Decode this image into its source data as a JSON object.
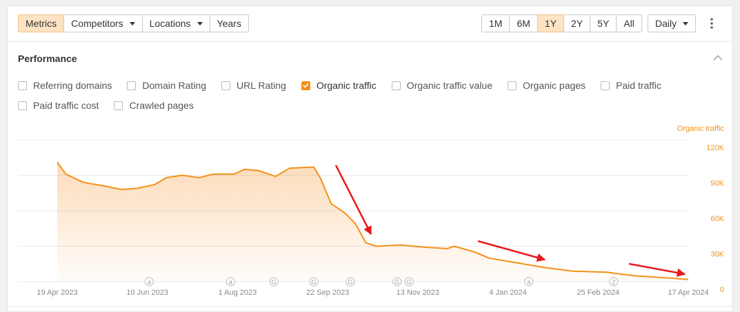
{
  "toolbar": {
    "tabs": [
      {
        "label": "Metrics",
        "active": true,
        "dropdown": false
      },
      {
        "label": "Competitors",
        "active": false,
        "dropdown": true
      },
      {
        "label": "Locations",
        "active": false,
        "dropdown": true
      },
      {
        "label": "Years",
        "active": false,
        "dropdown": false
      }
    ],
    "ranges": [
      {
        "label": "1M",
        "active": false
      },
      {
        "label": "6M",
        "active": false
      },
      {
        "label": "1Y",
        "active": true
      },
      {
        "label": "2Y",
        "active": false
      },
      {
        "label": "5Y",
        "active": false
      },
      {
        "label": "All",
        "active": false
      }
    ],
    "interval": "Daily"
  },
  "section_title": "Performance",
  "metrics": [
    {
      "label": "Referring domains",
      "checked": false
    },
    {
      "label": "Domain Rating",
      "checked": false
    },
    {
      "label": "URL Rating",
      "checked": false
    },
    {
      "label": "Organic traffic",
      "checked": true
    },
    {
      "label": "Organic traffic value",
      "checked": false
    },
    {
      "label": "Organic pages",
      "checked": false
    },
    {
      "label": "Paid traffic",
      "checked": false
    },
    {
      "label": "Paid traffic cost",
      "checked": false
    },
    {
      "label": "Crawled pages",
      "checked": false
    }
  ],
  "chart_data": {
    "type": "line",
    "y_label": "Organic traffic",
    "x": [
      "2023-04-19",
      "2023-04-24",
      "2023-05-04",
      "2023-05-16",
      "2023-05-26",
      "2023-06-04",
      "2023-06-14",
      "2023-06-21",
      "2023-06-30",
      "2023-07-10",
      "2023-07-18",
      "2023-07-30",
      "2023-08-05",
      "2023-08-13",
      "2023-08-23",
      "2023-08-31",
      "2023-09-14",
      "2023-09-18",
      "2023-09-24",
      "2023-10-02",
      "2023-10-08",
      "2023-10-14",
      "2023-10-20",
      "2023-11-03",
      "2023-11-19",
      "2023-11-30",
      "2023-12-04",
      "2023-12-16",
      "2023-12-24",
      "2024-01-09",
      "2024-01-25",
      "2024-02-10",
      "2024-03-01",
      "2024-03-17",
      "2024-04-02",
      "2024-04-17"
    ],
    "series": [
      {
        "name": "Organic traffic",
        "color": "#f39019",
        "values": [
          101000,
          91000,
          84000,
          81000,
          78000,
          79000,
          82000,
          88000,
          90000,
          88000,
          91000,
          91000,
          95000,
          94000,
          89000,
          96000,
          97000,
          87000,
          66000,
          58000,
          49000,
          33000,
          30000,
          31000,
          29000,
          28000,
          30000,
          25000,
          20000,
          16000,
          12000,
          9000,
          8000,
          5000,
          3500,
          2000
        ]
      }
    ],
    "xlim": [
      "2023-04-19",
      "2024-04-17"
    ],
    "xticks": [
      {
        "value": "2023-04-19",
        "label": "19 Apr 2023"
      },
      {
        "value": "2023-06-10",
        "label": "10 Jun 2023"
      },
      {
        "value": "2023-08-01",
        "label": "1 Aug 2023"
      },
      {
        "value": "2023-09-22",
        "label": "22 Sep 2023"
      },
      {
        "value": "2023-11-13",
        "label": "13 Nov 2023"
      },
      {
        "value": "2024-01-04",
        "label": "4 Jan 2024"
      },
      {
        "value": "2024-02-25",
        "label": "25 Feb 2024"
      },
      {
        "value": "2024-04-17",
        "label": "17 Apr 2024"
      }
    ],
    "ylim": [
      0,
      120000
    ],
    "yticks": [
      0,
      {
        "value": 30000,
        "label": "30K"
      },
      {
        "value": 60000,
        "label": "60K"
      },
      {
        "value": 90000,
        "label": "90K"
      },
      {
        "value": 120000,
        "label": "120K"
      }
    ],
    "grid": true,
    "markers": [
      {
        "x": "2023-06-11",
        "label": "a"
      },
      {
        "x": "2023-07-28",
        "label": "a"
      },
      {
        "x": "2023-08-22",
        "label": "G"
      },
      {
        "x": "2023-09-14",
        "label": "G"
      },
      {
        "x": "2023-10-05",
        "label": "G"
      },
      {
        "x": "2023-11-01",
        "label": "G"
      },
      {
        "x": "2023-11-08",
        "label": "G"
      },
      {
        "x": "2024-01-16",
        "label": "a"
      },
      {
        "x": "2024-03-05",
        "label": "2"
      }
    ]
  }
}
